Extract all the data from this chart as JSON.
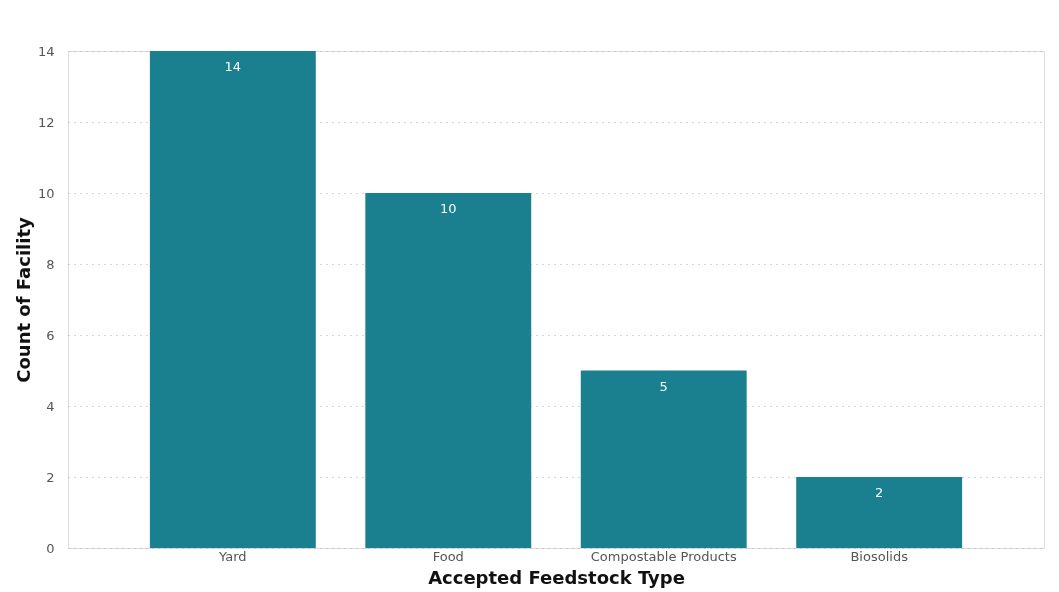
{
  "chart_data": {
    "type": "bar",
    "xlabel": "Accepted Feedstock Type",
    "ylabel": "Count of Facility",
    "categories": [
      "Yard",
      "Food",
      "Compostable Products",
      "Biosolids"
    ],
    "values": [
      14,
      10,
      5,
      2
    ],
    "color": "#1a7f8e",
    "ylim": [
      0,
      14
    ],
    "yticks": [
      0,
      2,
      4,
      6,
      8,
      10,
      12,
      14
    ],
    "grid": "y",
    "data_labels": true
  }
}
